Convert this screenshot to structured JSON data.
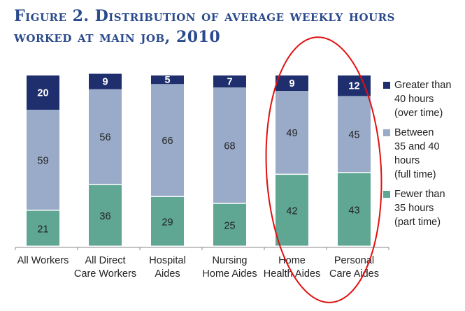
{
  "chart_data": {
    "type": "bar",
    "stacked": true,
    "title_line1": "Figure 2. Distribution of average weekly hours",
    "title_line2": "worked at main job, 2010",
    "categories": [
      "All Workers",
      "All Direct Care Workers",
      "Hospital Aides",
      "Nursing Home Aides",
      "Home Health Aides",
      "Personal Care Aides"
    ],
    "category_lines": [
      [
        "All Workers"
      ],
      [
        "All Direct",
        "Care Workers"
      ],
      [
        "Hospital",
        "Aides"
      ],
      [
        "Nursing",
        "Home Aides"
      ],
      [
        "Home",
        "Health Aides"
      ],
      [
        "Personal",
        "Care Aides"
      ]
    ],
    "series": [
      {
        "name": "Fewer than 35 hours (part time)",
        "color": "#5fa693",
        "values": [
          21,
          36,
          29,
          25,
          42,
          43
        ]
      },
      {
        "name": "Between 35 and 40 hours (full time)",
        "color": "#99abc9",
        "values": [
          59,
          56,
          66,
          68,
          49,
          45
        ]
      },
      {
        "name": "Greater than 40 hours (over time)",
        "color": "#1f2f6e",
        "values": [
          20,
          9,
          5,
          7,
          9,
          12
        ]
      }
    ],
    "legend": [
      {
        "label": "Greater than\n40 hours\n(over time)",
        "color": "#1f2f6e"
      },
      {
        "label": "Between\n35 and 40\nhours\n(full time)",
        "color": "#99abc9"
      },
      {
        "label": "Fewer than\n35 hours\n(part time)",
        "color": "#5fa693"
      }
    ],
    "legend_position": "right",
    "highlight": [
      "Home Health Aides",
      "Personal Care Aides"
    ],
    "highlight_color": "#e01010",
    "ylim": [
      0,
      100
    ],
    "grid": false
  }
}
